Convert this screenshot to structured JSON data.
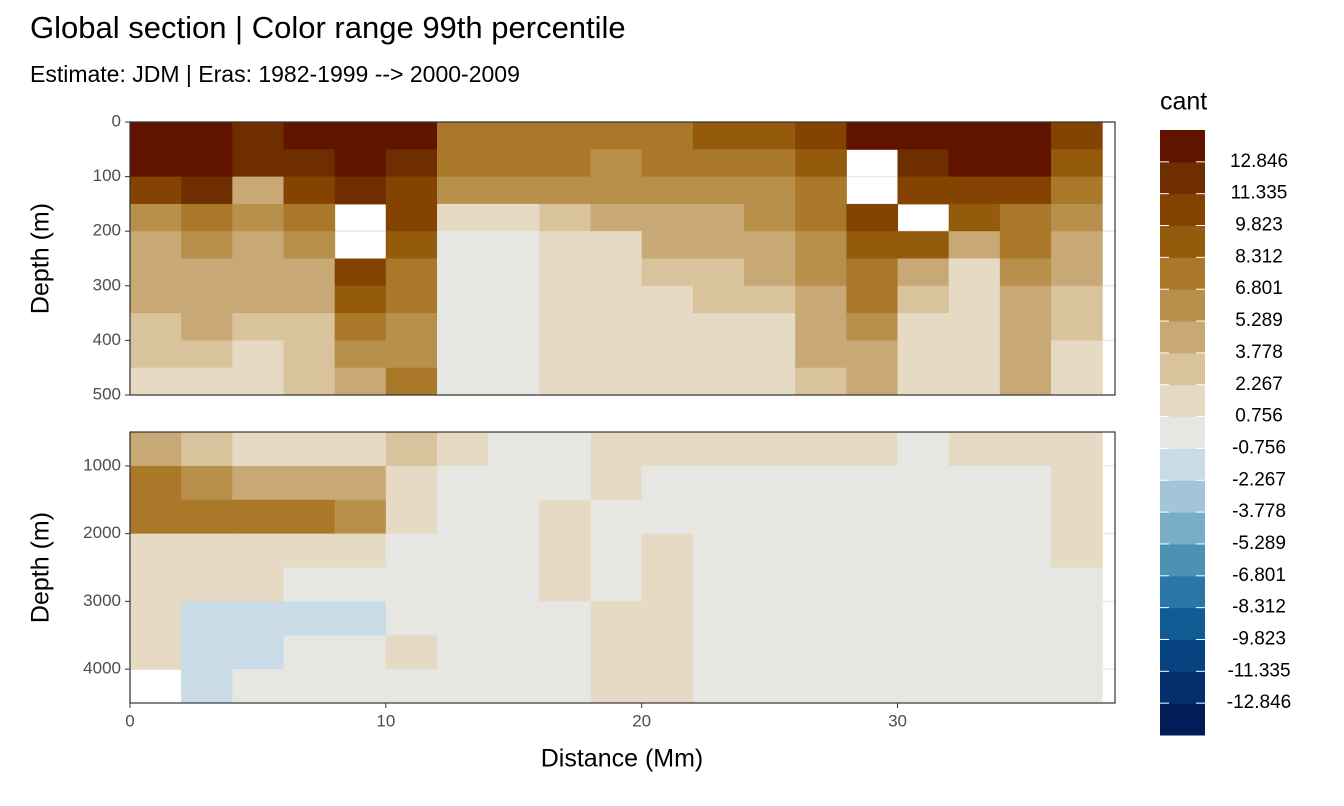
{
  "chart_data": {
    "type": "contour",
    "title": "Global section | Color range 99th percentile",
    "subtitle": "Estimate: JDM  | Eras: 1982-1999 --> 2000-2009",
    "x_label": "Distance (Mm)",
    "xlim": [
      0,
      38.5
    ],
    "xticks": [
      0,
      10,
      20,
      30
    ],
    "x": [
      1,
      3,
      5,
      7,
      9,
      11,
      13,
      15,
      17,
      19,
      21,
      23,
      25,
      27,
      29,
      31,
      33,
      35,
      37
    ],
    "grid": true,
    "legend": {
      "title": "cant",
      "breaks": [
        -12.846,
        -11.335,
        -9.823,
        -8.312,
        -6.801,
        -5.289,
        -3.778,
        -2.267,
        -0.756,
        0.756,
        2.267,
        3.778,
        5.289,
        6.801,
        8.312,
        9.823,
        11.335,
        12.846
      ],
      "colors": [
        "#021c58",
        "#042f6c",
        "#064280",
        "#115b94",
        "#2a76a6",
        "#4d92b5",
        "#78aec8",
        "#a3c5d9",
        "#c8dbe6",
        "#e6e7e3",
        "#e7dac4",
        "#d9c39c",
        "#c8a874",
        "#b98f4c",
        "#a97828",
        "#955b0c",
        "#844300",
        "#6f2e00",
        "#601400"
      ]
    },
    "panels": [
      {
        "y_label": "Depth (m)",
        "ylim": [
          0,
          500
        ],
        "yticks": [
          0,
          100,
          200,
          300,
          400,
          500
        ],
        "depth": [
          25,
          75,
          125,
          175,
          225,
          275,
          325,
          375,
          425,
          475
        ],
        "z": [
          [
            13,
            14,
            12,
            13,
            14,
            13,
            8,
            8,
            8,
            7,
            8,
            9,
            9,
            10,
            13,
            13,
            14,
            14,
            11
          ],
          [
            13,
            14,
            12,
            12,
            14,
            12,
            7,
            7,
            7,
            6,
            7,
            7,
            8,
            9,
            null,
            12,
            13,
            13,
            9
          ],
          [
            11,
            12,
            5,
            10,
            12,
            11,
            6,
            6,
            6,
            6,
            6,
            6,
            6,
            8,
            null,
            11,
            11,
            10,
            8
          ],
          [
            6,
            8,
            6,
            7,
            null,
            10,
            1,
            1.5,
            3,
            4,
            5,
            5,
            6,
            7,
            10,
            null,
            9,
            8,
            6
          ],
          [
            5,
            6,
            5,
            6,
            null,
            9,
            0.5,
            0,
            2,
            2,
            4,
            4,
            5,
            6,
            9,
            9,
            4,
            7,
            5
          ],
          [
            4,
            5,
            4,
            5,
            10,
            8,
            0,
            0,
            1.5,
            1.5,
            3,
            3,
            4,
            6,
            8,
            5,
            2,
            6,
            4
          ],
          [
            4,
            5,
            4,
            4,
            9,
            7,
            0,
            0,
            1.5,
            1.5,
            2,
            3,
            3,
            5,
            7,
            3,
            1,
            5,
            3
          ],
          [
            3,
            4,
            3,
            3,
            8,
            6,
            0,
            0,
            1.5,
            1.5,
            2,
            2,
            2,
            5,
            6,
            2,
            1,
            5,
            3
          ],
          [
            3,
            3,
            2,
            3,
            6,
            6,
            0,
            0,
            1.5,
            1.5,
            1.5,
            2,
            2,
            4,
            5,
            2,
            2,
            5,
            2
          ],
          [
            2,
            2,
            2,
            3,
            5,
            8,
            0,
            0,
            1.5,
            1.5,
            1.5,
            2,
            2,
            3,
            4,
            2,
            2,
            4,
            2
          ]
        ]
      },
      {
        "y_label": "Depth (m)",
        "ylim": [
          500,
          4500
        ],
        "yticks": [
          1000,
          2000,
          3000,
          4000
        ],
        "depth": [
          750,
          1250,
          1750,
          2250,
          2750,
          3250,
          3750,
          4250
        ],
        "z": [
          [
            4,
            3,
            2,
            1,
            2,
            3,
            1,
            0,
            0,
            1,
            1,
            1.5,
            1,
            1,
            1,
            0,
            1,
            1,
            1.5
          ],
          [
            7,
            6,
            4,
            5,
            4,
            2,
            0,
            0,
            0,
            1,
            0,
            0,
            0.5,
            0,
            0,
            0,
            0,
            0,
            1.5
          ],
          [
            7,
            7,
            7,
            7,
            6,
            1,
            0,
            0,
            1.5,
            0,
            0,
            0,
            0,
            0,
            0,
            0,
            0,
            0,
            1
          ],
          [
            2,
            2,
            2,
            2,
            2,
            0,
            0,
            0,
            1.5,
            0,
            1,
            0,
            0,
            0,
            0,
            0,
            0,
            0,
            1
          ],
          [
            2,
            1,
            1,
            0,
            0,
            0,
            0,
            0,
            1,
            0,
            1.5,
            0,
            0,
            0,
            0,
            0,
            0,
            0,
            0
          ],
          [
            1.5,
            -1,
            -1,
            -1,
            -1,
            0,
            0,
            0,
            0,
            1.5,
            1.5,
            0,
            0,
            0,
            0,
            0,
            0,
            0,
            0
          ],
          [
            1.5,
            -1,
            -1,
            0,
            0,
            1,
            0,
            0,
            0,
            1.5,
            1.5,
            0,
            0,
            0,
            0,
            0,
            0,
            0,
            0
          ],
          [
            null,
            -1,
            0,
            0,
            0,
            0,
            0,
            0,
            0,
            1.5,
            1.5,
            0,
            0,
            0,
            0,
            0,
            0,
            0,
            0
          ]
        ]
      }
    ]
  }
}
